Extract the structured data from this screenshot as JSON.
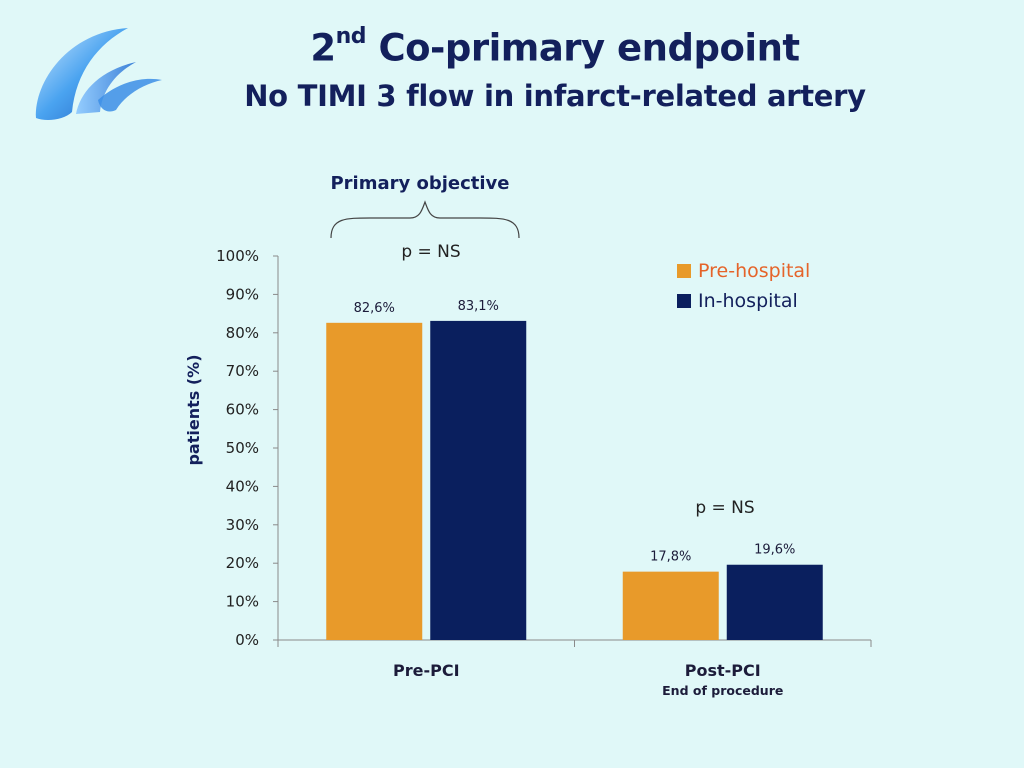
{
  "slide": {
    "title_main": "2",
    "title_sup": "nd",
    "title_rest": " Co-primary endpoint",
    "subtitle": "No TIMI 3 flow in infarct-related artery"
  },
  "annotations": {
    "primary_objective": "Primary objective",
    "p_value_pre": "p = NS",
    "p_value_post": "p = NS"
  },
  "chart_data": {
    "type": "bar",
    "categories": [
      "Pre-PCI",
      "Post-PCI"
    ],
    "category_sublabels": [
      "",
      "End of procedure"
    ],
    "series": [
      {
        "name": "Pre-hospital",
        "values": [
          82.6,
          17.8
        ],
        "labels": [
          "82,6%",
          "17,8%"
        ],
        "color": "#e89a2a",
        "legend_text_color": "#e5642a"
      },
      {
        "name": "In-hospital",
        "values": [
          83.1,
          19.6
        ],
        "labels": [
          "83,1%",
          "19,6%"
        ],
        "color": "#0a1f5e",
        "legend_text_color": "#13205c"
      }
    ],
    "ylabel": "patients (%)",
    "ylim": [
      0,
      100
    ],
    "yticks": [
      0,
      10,
      20,
      30,
      40,
      50,
      60,
      70,
      80,
      90,
      100
    ],
    "ytick_labels": [
      "0%",
      "10%",
      "20%",
      "30%",
      "40%",
      "50%",
      "60%",
      "70%",
      "80%",
      "90%",
      "100%"
    ],
    "grid": false,
    "legend_position": "top-right"
  }
}
